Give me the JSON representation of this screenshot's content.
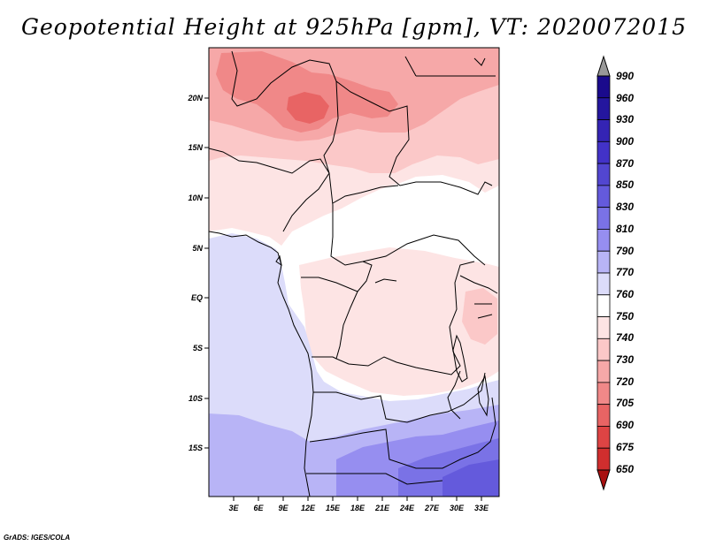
{
  "title": "Geopotential Height at 925hPa [gpm], VT: 2020072015",
  "credit": "GrADS: IGES/COLA",
  "map": {
    "lon_labels": [
      "3E",
      "6E",
      "9E",
      "12E",
      "15E",
      "18E",
      "21E",
      "24E",
      "27E",
      "30E",
      "33E"
    ],
    "lat_labels": [
      "20N",
      "15N",
      "10N",
      "5N",
      "EQ",
      "5S",
      "10S",
      "15S"
    ]
  },
  "colorbar": {
    "levels": [
      "990",
      "960",
      "930",
      "900",
      "870",
      "850",
      "830",
      "810",
      "790",
      "770",
      "760",
      "750",
      "740",
      "730",
      "720",
      "705",
      "690",
      "675",
      "650"
    ],
    "colors": [
      "#1a0a8c",
      "#24169e",
      "#3424b4",
      "#4232c8",
      "#5246d0",
      "#645adc",
      "#7a72e6",
      "#968ef0",
      "#b8b4f6",
      "#dcdcfa",
      "#ffffff",
      "#fde4e4",
      "#fbc8c8",
      "#f6a8a8",
      "#f08888",
      "#e86464",
      "#de4444",
      "#d02e2e",
      "#bc1c1c",
      "#a81010"
    ]
  }
}
